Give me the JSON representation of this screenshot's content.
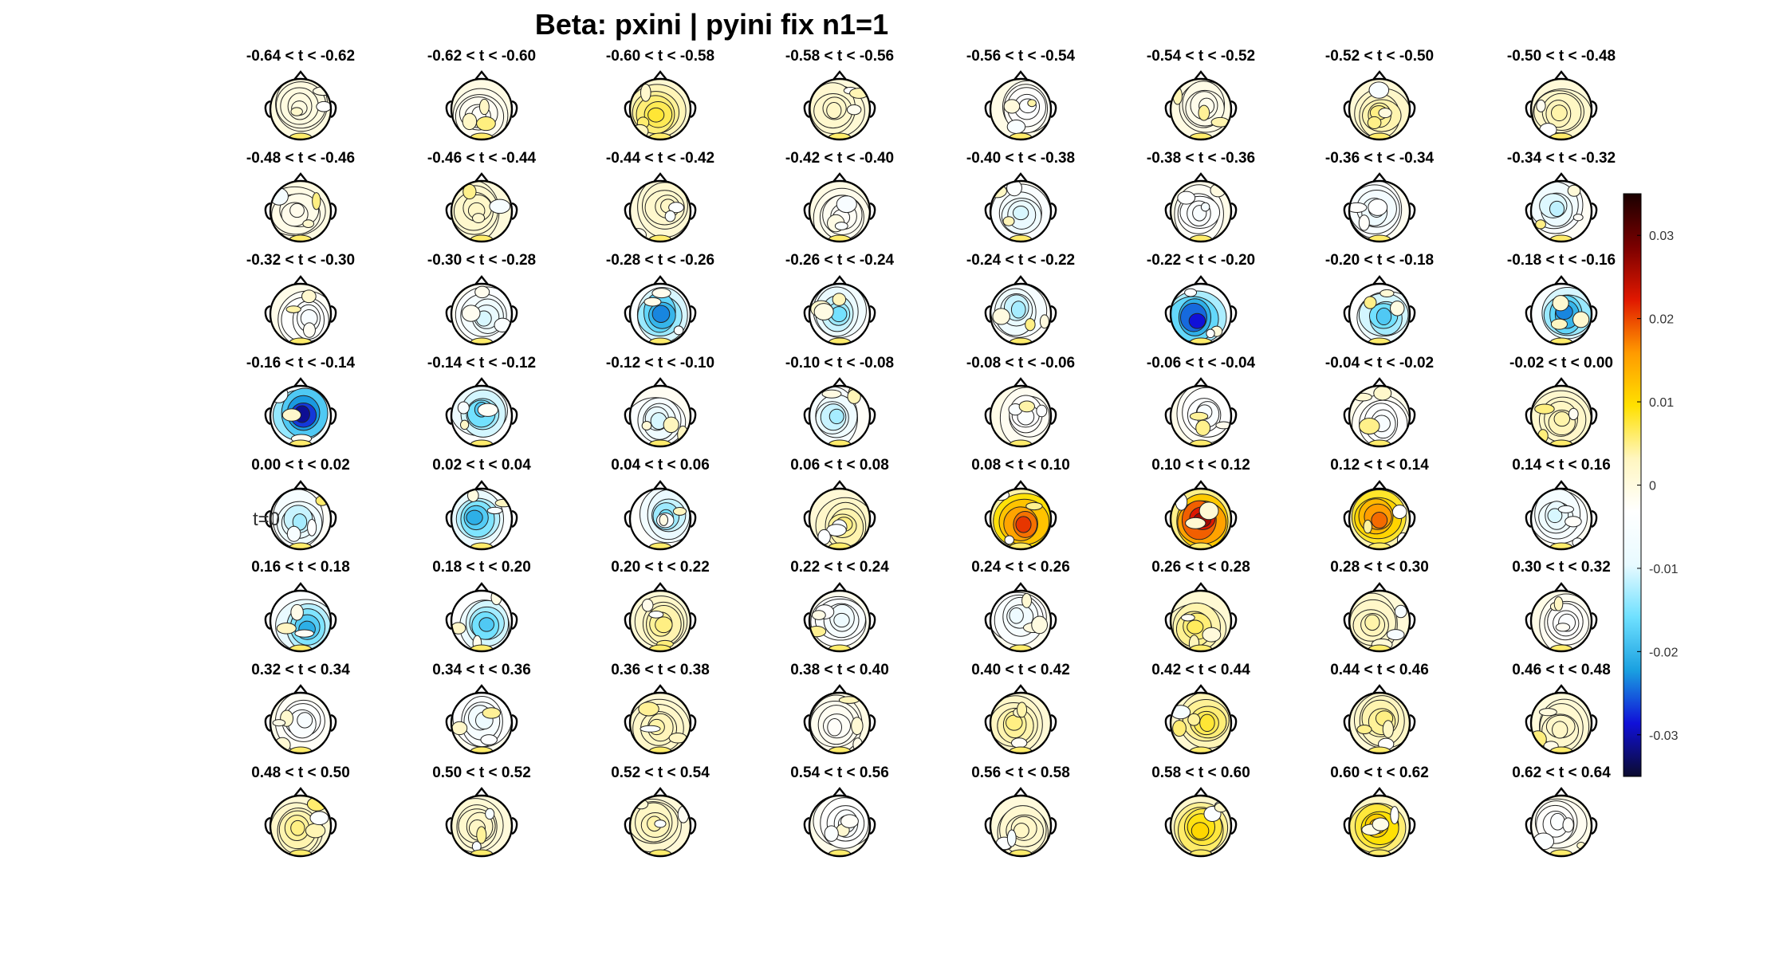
{
  "chart_data": {
    "type": "heatmap",
    "title": "Beta: pxini | pyini fix  n1=1",
    "layout": {
      "rows": 8,
      "cols": 8
    },
    "panels": [
      {
        "label": "-0.64 < t < -0.62",
        "mean": 0.0
      },
      {
        "label": "-0.62 < t < -0.60",
        "mean": -0.002
      },
      {
        "label": "-0.60 < t < -0.58",
        "mean": 0.006
      },
      {
        "label": "-0.58 < t < -0.56",
        "mean": 0.002
      },
      {
        "label": "-0.56 < t < -0.54",
        "mean": -0.003
      },
      {
        "label": "-0.54 < t < -0.52",
        "mean": -0.001
      },
      {
        "label": "-0.52 < t < -0.50",
        "mean": 0.004
      },
      {
        "label": "-0.50 < t < -0.48",
        "mean": 0.003
      },
      {
        "label": "-0.48 < t < -0.46",
        "mean": -0.001
      },
      {
        "label": "-0.46 < t < -0.44",
        "mean": 0.002
      },
      {
        "label": "-0.44 < t < -0.42",
        "mean": 0.002
      },
      {
        "label": "-0.42 < t < -0.40",
        "mean": -0.002
      },
      {
        "label": "-0.40 < t < -0.38",
        "mean": -0.008
      },
      {
        "label": "-0.38 < t < -0.36",
        "mean": -0.004
      },
      {
        "label": "-0.36 < t < -0.34",
        "mean": -0.007
      },
      {
        "label": "-0.34 < t < -0.32",
        "mean": -0.009
      },
      {
        "label": "-0.32 < t < -0.30",
        "mean": -0.004
      },
      {
        "label": "-0.30 < t < -0.28",
        "mean": -0.008
      },
      {
        "label": "-0.28 < t < -0.26",
        "mean": -0.018
      },
      {
        "label": "-0.26 < t < -0.24",
        "mean": -0.012
      },
      {
        "label": "-0.24 < t < -0.22",
        "mean": -0.01
      },
      {
        "label": "-0.22 < t < -0.20",
        "mean": -0.022
      },
      {
        "label": "-0.20 < t < -0.18",
        "mean": -0.014
      },
      {
        "label": "-0.18 < t < -0.16",
        "mean": -0.018
      },
      {
        "label": "-0.16 < t < -0.14",
        "mean": -0.024
      },
      {
        "label": "-0.14 < t < -0.12",
        "mean": -0.014
      },
      {
        "label": "-0.12 < t < -0.10",
        "mean": -0.008
      },
      {
        "label": "-0.10 < t < -0.08",
        "mean": -0.01
      },
      {
        "label": "-0.08 < t < -0.06",
        "mean": -0.003
      },
      {
        "label": "-0.06 < t < -0.04",
        "mean": -0.004
      },
      {
        "label": "-0.04 < t < -0.02",
        "mean": -0.004
      },
      {
        "label": "-0.02 < t < 0.00",
        "mean": 0.003
      },
      {
        "label": "0.00 < t < 0.02",
        "mean": -0.01
      },
      {
        "label": "0.02 < t < 0.04",
        "mean": -0.016
      },
      {
        "label": "0.04 < t < 0.06",
        "mean": -0.012
      },
      {
        "label": "0.06 < t < 0.08",
        "mean": 0.004
      },
      {
        "label": "0.08 < t < 0.10",
        "mean": 0.016
      },
      {
        "label": "0.10 < t < 0.12",
        "mean": 0.02
      },
      {
        "label": "0.12 < t < 0.14",
        "mean": 0.014
      },
      {
        "label": "0.14 < t < 0.16",
        "mean": -0.008
      },
      {
        "label": "0.16 < t < 0.18",
        "mean": -0.016
      },
      {
        "label": "0.18 < t < 0.20",
        "mean": -0.014
      },
      {
        "label": "0.20 < t < 0.22",
        "mean": 0.004
      },
      {
        "label": "0.22 < t < 0.24",
        "mean": -0.006
      },
      {
        "label": "0.24 < t < 0.26",
        "mean": -0.006
      },
      {
        "label": "0.26 < t < 0.28",
        "mean": 0.005
      },
      {
        "label": "0.28 < t < 0.30",
        "mean": 0.003
      },
      {
        "label": "0.30 < t < 0.32",
        "mean": -0.003
      },
      {
        "label": "0.32 < t < 0.34",
        "mean": -0.004
      },
      {
        "label": "0.34 < t < 0.36",
        "mean": -0.006
      },
      {
        "label": "0.36 < t < 0.38",
        "mean": 0.003
      },
      {
        "label": "0.38 < t < 0.40",
        "mean": -0.002
      },
      {
        "label": "0.40 < t < 0.42",
        "mean": 0.004
      },
      {
        "label": "0.42 < t < 0.44",
        "mean": 0.006
      },
      {
        "label": "0.44 < t < 0.46",
        "mean": 0.004
      },
      {
        "label": "0.46 < t < 0.48",
        "mean": 0.002
      },
      {
        "label": "0.48 < t < 0.50",
        "mean": 0.004
      },
      {
        "label": "0.50 < t < 0.52",
        "mean": 0.002
      },
      {
        "label": "0.52 < t < 0.54",
        "mean": 0.003
      },
      {
        "label": "0.54 < t < 0.56",
        "mean": -0.004
      },
      {
        "label": "0.56 < t < 0.58",
        "mean": 0.002
      },
      {
        "label": "0.58 < t < 0.60",
        "mean": 0.008
      },
      {
        "label": "0.60 < t < 0.62",
        "mean": 0.01
      },
      {
        "label": "0.62 < t < 0.64",
        "mean": -0.003
      }
    ],
    "marker": {
      "text": "t=0",
      "panel_index": 32
    },
    "colorbar": {
      "range": [
        -0.035,
        0.035
      ],
      "ticks": [
        0.03,
        0.02,
        0.01,
        0,
        -0.01,
        -0.02,
        -0.03
      ],
      "tick_labels": [
        "0.03",
        "0.02",
        "0.01",
        "0",
        "-0.01",
        "-0.02",
        "-0.03"
      ],
      "colormap": "black-blue-cyan-white-yellow-orange-red-darkred",
      "colors": [
        "#0b0b2e",
        "#1010d8",
        "#1aa0e0",
        "#6ee0ff",
        "#e8faff",
        "#ffffff",
        "#fff6c0",
        "#ffe000",
        "#ff9a00",
        "#e01800",
        "#7a0000",
        "#1a0000"
      ]
    }
  }
}
